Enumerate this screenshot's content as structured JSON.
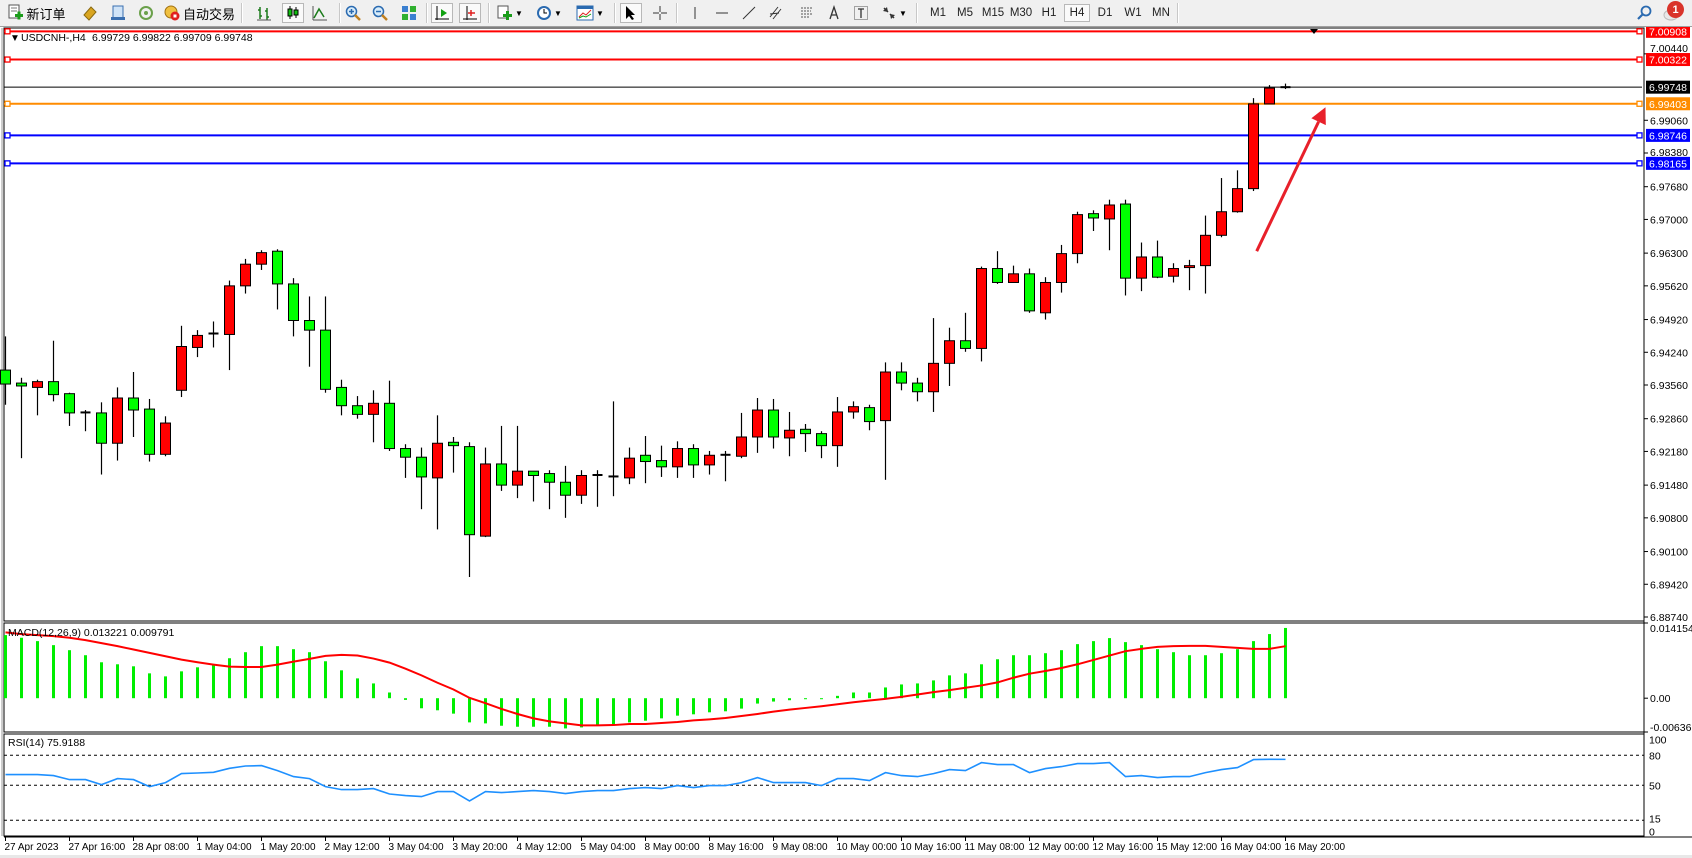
{
  "toolbar": {
    "new_order_label": "新订单",
    "auto_trading_label": "自动交易",
    "timeframes": [
      "M1",
      "M5",
      "M15",
      "M30",
      "H1",
      "H4",
      "D1",
      "W1",
      "MN"
    ],
    "active_timeframe": "H4",
    "notification_count": "1"
  },
  "chart_header": {
    "symbol": "USDCNH-,H4",
    "ohlc": "6.99729 6.99822 6.99709 6.99748"
  },
  "colors": {
    "bull_candle": "#ff0000",
    "bear_candle": "#00ff00",
    "macd_histogram": "#00ee00",
    "macd_signal": "#ff0000",
    "rsi_line": "#1e90ff",
    "resistance": "#ff0000",
    "bid": "#000000",
    "pivot": "#ff8c00",
    "support": "#0000ff",
    "arrow": "#e8202a"
  },
  "chart_data": {
    "type": "candlestick",
    "symbol": "USDCNH-",
    "timeframe": "H4",
    "ylim": [
      6.8874,
      7.01
    ],
    "price_ticks": [
      "7.00440",
      "6.99060",
      "6.98380",
      "6.97680",
      "6.97000",
      "6.96300",
      "6.95620",
      "6.94920",
      "6.94240",
      "6.93560",
      "6.92860",
      "6.92180",
      "6.91480",
      "6.90800",
      "6.90100",
      "6.89420",
      "6.88740"
    ],
    "time_labels": [
      "27 Apr 2023",
      "27 Apr 16:00",
      "28 Apr 08:00",
      "1 May 04:00",
      "1 May 20:00",
      "2 May 12:00",
      "3 May 04:00",
      "3 May 20:00",
      "4 May 12:00",
      "5 May 04:00",
      "8 May 00:00",
      "8 May 16:00",
      "9 May 08:00",
      "10 May 00:00",
      "10 May 16:00",
      "11 May 08:00",
      "12 May 00:00",
      "12 May 16:00",
      "15 May 12:00",
      "16 May 04:00",
      "16 May 20:00"
    ],
    "candles_ohlc": [
      [
        6.9387,
        6.9457,
        6.9315,
        6.9358
      ],
      [
        6.936,
        6.9371,
        6.9204,
        6.9354
      ],
      [
        6.9351,
        6.9367,
        6.9293,
        6.9363
      ],
      [
        6.9363,
        6.9448,
        6.9322,
        6.9336
      ],
      [
        6.9338,
        6.934,
        6.9271,
        6.9298
      ],
      [
        6.9298,
        6.9304,
        6.926,
        6.9299
      ],
      [
        6.9298,
        6.932,
        6.917,
        6.9235
      ],
      [
        6.9235,
        6.9351,
        6.9199,
        6.9329
      ],
      [
        6.9329,
        6.9383,
        6.9248,
        6.9304
      ],
      [
        6.9306,
        6.9327,
        6.9197,
        6.9212
      ],
      [
        6.9212,
        6.9291,
        6.9208,
        6.9277
      ],
      [
        6.9345,
        6.9479,
        6.9331,
        6.9436
      ],
      [
        6.9434,
        6.947,
        6.9414,
        6.9459
      ],
      [
        6.9461,
        6.9488,
        6.9434,
        6.9463
      ],
      [
        6.9461,
        6.9573,
        6.9387,
        6.9562
      ],
      [
        6.9562,
        6.9618,
        6.9546,
        6.9607
      ],
      [
        6.9607,
        6.9636,
        6.9595,
        6.9631
      ],
      [
        6.9634,
        6.9638,
        6.9513,
        6.9566
      ],
      [
        6.9566,
        6.9578,
        6.9457,
        6.949
      ],
      [
        6.949,
        6.954,
        6.9394,
        6.947
      ],
      [
        6.947,
        6.954,
        6.934,
        6.9347
      ],
      [
        6.9351,
        6.9367,
        6.9293,
        6.9313
      ],
      [
        6.9313,
        6.9333,
        6.9286,
        6.9295
      ],
      [
        6.9295,
        6.9345,
        6.9237,
        6.9318
      ],
      [
        6.9318,
        6.9365,
        6.9219,
        6.9224
      ],
      [
        6.9224,
        6.9233,
        6.9163,
        6.9206
      ],
      [
        6.9206,
        6.9226,
        6.9098,
        6.9165
      ],
      [
        6.9163,
        6.9293,
        6.9056,
        6.9235
      ],
      [
        6.9237,
        6.9248,
        6.9174,
        6.923
      ],
      [
        6.9228,
        6.9237,
        6.8957,
        6.9045
      ],
      [
        6.9042,
        6.9226,
        6.904,
        6.9192
      ],
      [
        6.9192,
        6.9271,
        6.9136,
        6.9148
      ],
      [
        6.9148,
        6.9271,
        6.9121,
        6.9177
      ],
      [
        6.9177,
        6.9177,
        6.9114,
        6.9168
      ],
      [
        6.9172,
        6.9179,
        6.9098,
        6.9154
      ],
      [
        6.9154,
        6.9188,
        6.908,
        6.9127
      ],
      [
        6.9127,
        6.9179,
        6.9109,
        6.9168
      ],
      [
        6.9168,
        6.9179,
        6.9103,
        6.9169
      ],
      [
        6.9166,
        6.9322,
        6.9125,
        6.9165
      ],
      [
        6.9163,
        6.9226,
        6.915,
        6.9204
      ],
      [
        6.921,
        6.925,
        6.9152,
        6.9197
      ],
      [
        6.9199,
        6.923,
        6.9165,
        6.9186
      ],
      [
        6.9186,
        6.9239,
        6.9163,
        6.9224
      ],
      [
        6.9224,
        6.9233,
        6.9163,
        6.919
      ],
      [
        6.919,
        6.9219,
        6.917,
        6.921
      ],
      [
        6.921,
        6.9219,
        6.9156,
        6.9211
      ],
      [
        6.9208,
        6.9298,
        6.9204,
        6.9248
      ],
      [
        6.9248,
        6.9329,
        6.9215,
        6.9304
      ],
      [
        6.9304,
        6.9327,
        6.9224,
        6.9248
      ],
      [
        6.9246,
        6.93,
        6.9208,
        6.9262
      ],
      [
        6.9264,
        6.9275,
        6.9217,
        6.9255
      ],
      [
        6.9255,
        6.926,
        6.9204,
        6.923
      ],
      [
        6.923,
        6.9331,
        6.9186,
        6.93
      ],
      [
        6.93,
        6.9322,
        6.9286,
        6.9311
      ],
      [
        6.9309,
        6.9315,
        6.9262,
        6.928
      ],
      [
        6.9282,
        6.9403,
        6.9159,
        6.9383
      ],
      [
        6.9383,
        6.9403,
        6.9345,
        6.936
      ],
      [
        6.936,
        6.9371,
        6.9322,
        6.9342
      ],
      [
        6.9342,
        6.9495,
        6.93,
        6.9401
      ],
      [
        6.9401,
        6.9475,
        6.9354,
        6.9448
      ],
      [
        6.9448,
        6.9506,
        6.9425,
        6.9432
      ],
      [
        6.9432,
        6.9602,
        6.9405,
        6.9598
      ],
      [
        6.9598,
        6.9634,
        6.9566,
        6.9569
      ],
      [
        6.9569,
        6.9604,
        6.9569,
        6.9587
      ],
      [
        6.9587,
        6.9598,
        6.9506,
        6.951
      ],
      [
        6.9506,
        6.958,
        6.9492,
        6.9569
      ],
      [
        6.9569,
        6.9647,
        6.9548,
        6.9629
      ],
      [
        6.9629,
        6.9716,
        6.9609,
        6.971
      ],
      [
        6.9712,
        6.9719,
        6.9676,
        6.9703
      ],
      [
        6.9701,
        6.9741,
        6.9636,
        6.973
      ],
      [
        6.9732,
        6.9741,
        6.9542,
        6.9578
      ],
      [
        6.9578,
        6.9652,
        6.9551,
        6.9622
      ],
      [
        6.9622,
        6.9656,
        6.9578,
        6.958
      ],
      [
        6.9582,
        6.9609,
        6.9569,
        6.9598
      ],
      [
        6.96,
        6.9616,
        6.9553,
        6.9604
      ],
      [
        6.9604,
        6.9708,
        6.9546,
        6.9667
      ],
      [
        6.9667,
        6.9786,
        6.9663,
        6.9716
      ],
      [
        6.9716,
        6.9802,
        6.9714,
        6.9764
      ],
      [
        6.9764,
        6.9952,
        6.9759,
        6.994
      ],
      [
        6.994,
        6.9979,
        6.994,
        6.99729
      ],
      [
        6.99729,
        6.99822,
        6.99709,
        6.99748
      ]
    ],
    "horizontal_lines": [
      {
        "price": "7.00908",
        "role": "resistance"
      },
      {
        "price": "7.00322",
        "role": "resistance"
      },
      {
        "price": "6.99748",
        "role": "bid"
      },
      {
        "price": "6.99403",
        "role": "pivot"
      },
      {
        "price": "6.98746",
        "role": "support"
      },
      {
        "price": "6.98165",
        "role": "support"
      }
    ],
    "annotation_arrow": {
      "from_price": 6.9634,
      "to_price": 6.9933,
      "from_bar": 78.2,
      "to_bar": 82.5
    },
    "macd": {
      "label": "MACD(12,26,9) 0.013221 0.009791",
      "ylim": [
        -0.006362,
        0.014154
      ],
      "axis_labels": [
        "0.014154",
        "0.00",
        "-0.006362"
      ],
      "histogram": [
        0.011882,
        0.011376,
        0.010744,
        0.009986,
        0.009038,
        0.00809,
        0.006762,
        0.006383,
        0.006004,
        0.004677,
        0.004108,
        0.005056,
        0.005814,
        0.006383,
        0.007521,
        0.008658,
        0.009796,
        0.009796,
        0.009227,
        0.008658,
        0.006952,
        0.005246,
        0.003729,
        0.002781,
        0.001074,
        -0.000316,
        -0.001896,
        -0.002275,
        -0.002907,
        -0.00455,
        -0.00474,
        -0.005182,
        -0.005372,
        -0.005372,
        -0.005372,
        -0.005688,
        -0.005498,
        -0.005182,
        -0.004993,
        -0.00455,
        -0.004234,
        -0.003792,
        -0.003286,
        -0.003034,
        -0.002654,
        -0.002465,
        -0.001959,
        -0.001011,
        -0.000632,
        -0.000379,
        -0.00019,
        -0.00019,
        0.000442,
        0.001074,
        0.001074,
        0.002022,
        0.002591,
        0.002781,
        0.00335,
        0.004298,
        0.004677,
        0.006383,
        0.007331,
        0.00809,
        0.00809,
        0.008469,
        0.009038,
        0.010175,
        0.010744,
        0.011313,
        0.010554,
        0.009986,
        0.009227,
        0.008658,
        0.00809,
        0.00809,
        0.008469,
        0.009227,
        0.010744,
        0.012071,
        0.013221
      ],
      "signal": [
        0.012387,
        0.012071,
        0.011882,
        0.011692,
        0.011376,
        0.010934,
        0.010365,
        0.009796,
        0.009164,
        0.008532,
        0.0079,
        0.007268,
        0.006762,
        0.00632,
        0.005941,
        0.005878,
        0.005878,
        0.00632,
        0.006889,
        0.007394,
        0.007963,
        0.008153,
        0.008026,
        0.007458,
        0.006699,
        0.005562,
        0.004298,
        0.002907,
        0.001643,
        6.3e-05,
        -0.000948,
        -0.002022,
        -0.00297,
        -0.003792,
        -0.004361,
        -0.00474,
        -0.005119,
        -0.005119,
        -0.005056,
        -0.004866,
        -0.004866,
        -0.004677,
        -0.004487,
        -0.004171,
        -0.003982,
        -0.003729,
        -0.00335,
        -0.00297,
        -0.002528,
        -0.002149,
        -0.001833,
        -0.001517,
        -0.001138,
        -0.000758,
        -0.000442,
        -0.000126,
        0.000253,
        0.000695,
        0.001138,
        0.001517,
        0.001959,
        0.002402,
        0.00297,
        0.003855,
        0.004614,
        0.005119,
        0.005688,
        0.006383,
        0.007205,
        0.008026,
        0.008848,
        0.00929,
        0.00967,
        0.009796,
        0.009859,
        0.009859,
        0.00967,
        0.00948,
        0.00929,
        0.00929,
        0.009791
      ]
    },
    "rsi": {
      "label": "RSI(14) 75.9188",
      "ylim": [
        0,
        100
      ],
      "levels": [
        80,
        50,
        15
      ],
      "axis_labels": [
        "100",
        "80",
        "50",
        "15",
        "0"
      ],
      "values": [
        60.7,
        60.7,
        60.7,
        59.7,
        55.7,
        55.7,
        50.7,
        56.7,
        55.7,
        48.7,
        52.7,
        61.7,
        62.3,
        63.0,
        67.0,
        69.3,
        69.7,
        64.7,
        58.7,
        56.7,
        48.7,
        45.7,
        45.7,
        46.7,
        41.3,
        39.7,
        38.7,
        43.7,
        43.7,
        34.3,
        43.7,
        42.7,
        43.7,
        44.7,
        43.7,
        41.7,
        43.7,
        44.7,
        44.7,
        46.7,
        47.7,
        46.7,
        49.7,
        47.7,
        49.7,
        49.7,
        52.7,
        57.7,
        52.7,
        52.7,
        52.7,
        49.7,
        56.7,
        56.7,
        54.7,
        62.7,
        59.7,
        58.7,
        61.7,
        65.7,
        64.7,
        72.7,
        70.7,
        70.7,
        62.7,
        66.7,
        68.7,
        71.7,
        71.7,
        72.7,
        58.7,
        59.7,
        57.7,
        58.7,
        58.7,
        62.7,
        65.7,
        67.7,
        75.7,
        76.0,
        75.9188
      ]
    }
  }
}
